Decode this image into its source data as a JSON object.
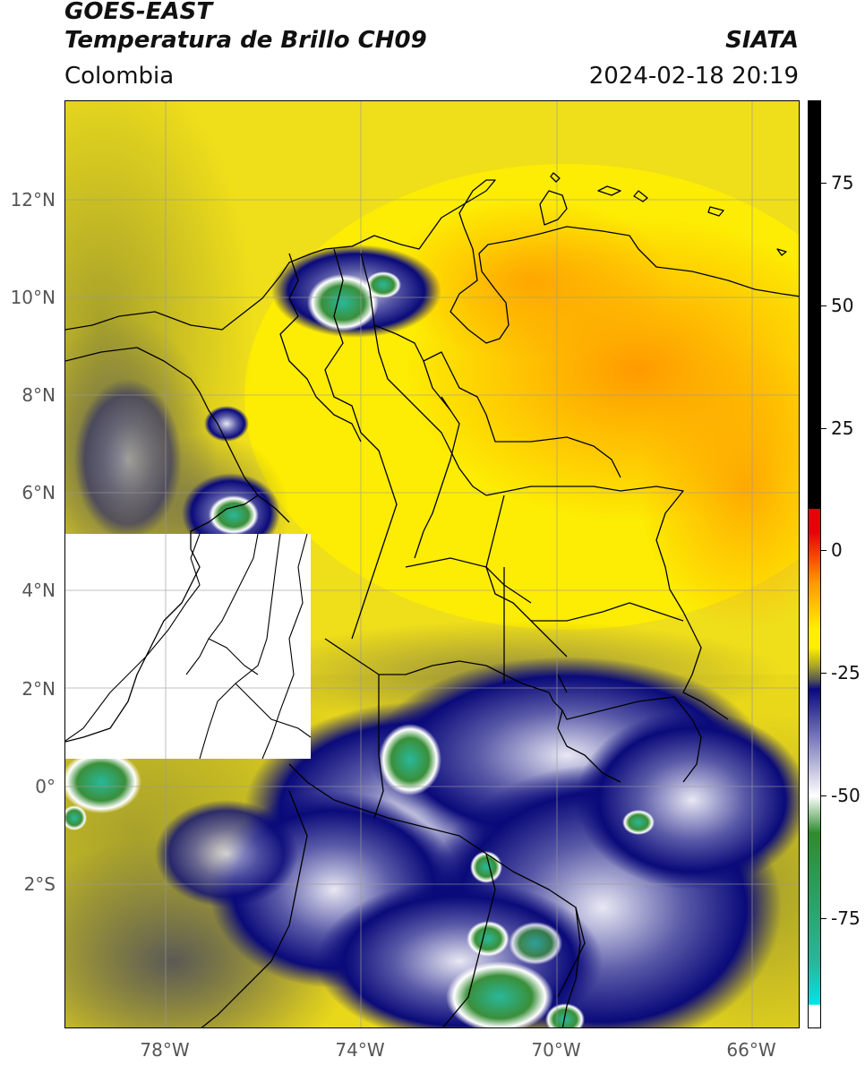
{
  "header": {
    "satellite": "GOES-EAST",
    "product": "Temperatura de Brillo CH09",
    "region": "Colombia",
    "source": "SIATA",
    "datetime": "2024-02-18 20:19"
  },
  "map": {
    "lat_labels": [
      "12°N",
      "10°N",
      "8°N",
      "6°N",
      "4°N",
      "2°N",
      "0°",
      "2°S"
    ],
    "lon_labels": [
      "78°W",
      "74°W",
      "70°W",
      "66°W"
    ]
  },
  "colorbar": {
    "tick_labels": [
      "75",
      "50",
      "25",
      "0",
      "-25",
      "-50",
      "-75"
    ],
    "colors": {
      "black": "#000000",
      "red": "#e8000b",
      "orange": "#ff9900",
      "yellow": "#ffee00",
      "olive": "#a8a32a",
      "gray": "#555555",
      "navy": "#0a0a80",
      "white": "#ffffff",
      "green": "#2e8b2e",
      "teal": "#2bb59a",
      "cyan": "#00e5e5"
    }
  }
}
